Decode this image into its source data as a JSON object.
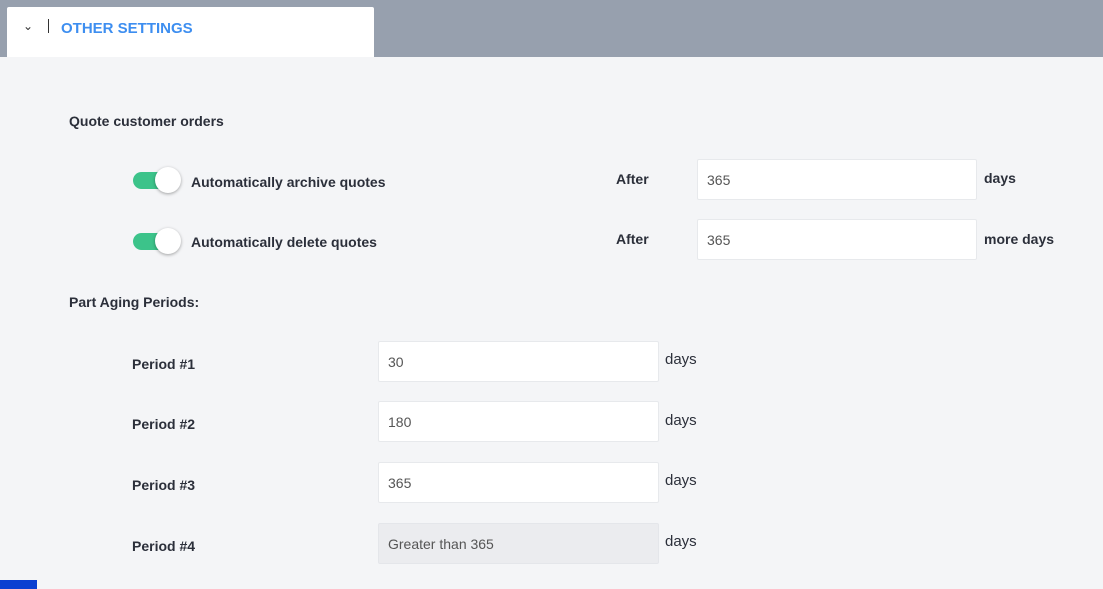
{
  "section": {
    "title": "OTHER SETTINGS",
    "icon": "chevron-down-icon"
  },
  "quotes": {
    "heading": "Quote customer orders",
    "archive": {
      "label": "Automatically archive quotes",
      "enabled": true,
      "after_label": "After",
      "value": "365",
      "unit": "days"
    },
    "delete": {
      "label": "Automatically delete quotes",
      "enabled": true,
      "after_label": "After",
      "value": "365",
      "unit": "more days"
    }
  },
  "aging": {
    "heading": "Part Aging Periods:",
    "periods": [
      {
        "label": "Period #1",
        "value": "30",
        "unit": "days"
      },
      {
        "label": "Period #2",
        "value": "180",
        "unit": "days"
      },
      {
        "label": "Period #3",
        "value": "365",
        "unit": "days"
      },
      {
        "label": "Period #4",
        "value": "Greater than 365",
        "unit": "days",
        "disabled": true
      }
    ]
  },
  "colors": {
    "accent": "#3d8ef0",
    "toggle_on": "#3cc38a",
    "header_bg": "#97a0ae"
  }
}
